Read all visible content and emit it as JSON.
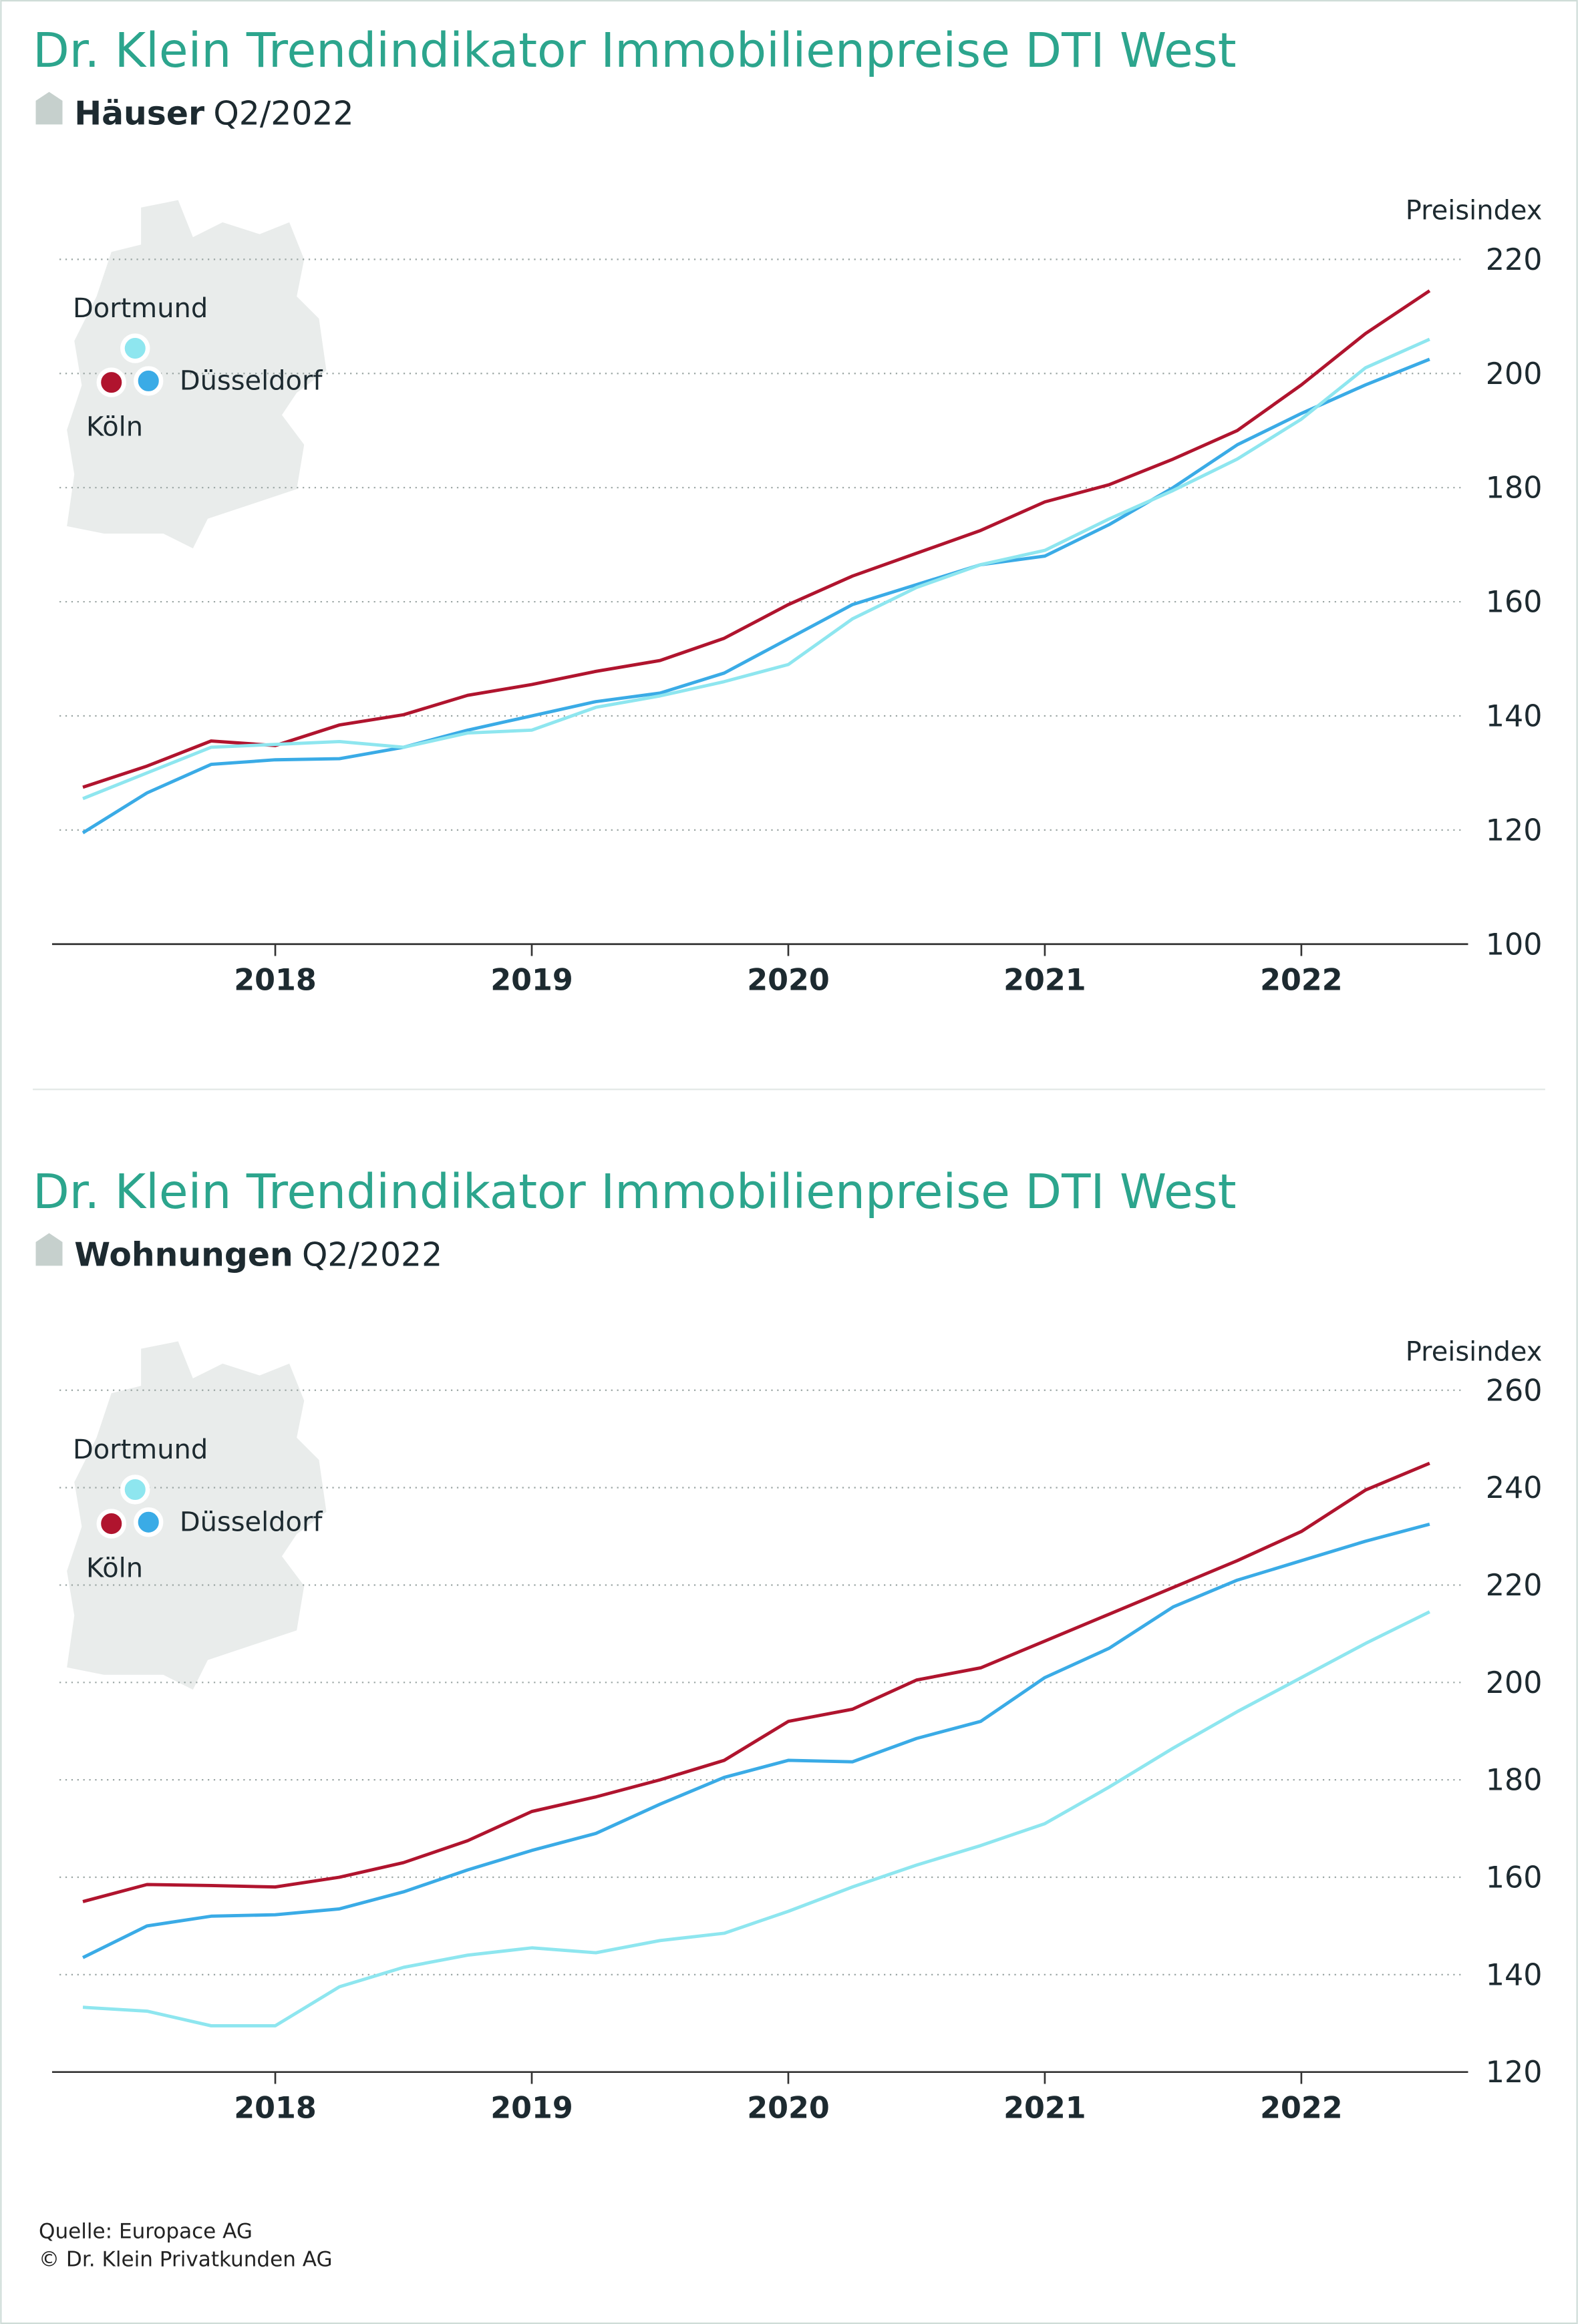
{
  "chart_data": [
    {
      "type": "line",
      "title": "Dr. Klein Trendindikator Immobilienpreise DTI West",
      "subtitle_bold": "Häuser",
      "subtitle": "Q2/2022",
      "y_axis_label": "Preisindex",
      "x": [
        2017.25,
        2017.5,
        2017.75,
        2018,
        2018.25,
        2018.5,
        2018.75,
        2019,
        2019.25,
        2019.5,
        2019.75,
        2020,
        2020.25,
        2020.5,
        2020.75,
        2021,
        2021.25,
        2021.5,
        2021.75,
        2022,
        2022.25,
        2022.5
      ],
      "xlim": [
        2017.13,
        2022.65
      ],
      "xticks": [
        2018,
        2019,
        2020,
        2021,
        2022
      ],
      "ylim": [
        100,
        220
      ],
      "yticks": [
        100,
        120,
        140,
        160,
        180,
        200,
        220
      ],
      "grid": true,
      "series": [
        {
          "name": "Köln",
          "color": "#b0142e",
          "values": [
            127.5,
            131.2,
            135.6,
            134.8,
            138.4,
            140.2,
            143.6,
            145.5,
            147.8,
            149.7,
            153.6,
            159.5,
            164.5,
            168.5,
            172.5,
            177.5,
            180.5,
            185,
            190,
            198,
            207,
            214.5
          ]
        },
        {
          "name": "Düsseldorf",
          "color": "#3aabe6",
          "values": [
            119.5,
            126.5,
            131.5,
            132.3,
            132.5,
            134.5,
            137.5,
            140,
            142.5,
            144,
            147.5,
            153.5,
            159.5,
            163,
            166.5,
            168,
            173.5,
            180,
            187.5,
            193,
            198,
            202.5
          ]
        },
        {
          "name": "Dortmund",
          "color": "#8ee6ef",
          "values": [
            125.5,
            130,
            134.5,
            135,
            135.5,
            134.5,
            137,
            137.5,
            141.5,
            143.5,
            146,
            149,
            157,
            162.5,
            166.5,
            169,
            174.5,
            179.5,
            185,
            192,
            201,
            206
          ]
        }
      ]
    },
    {
      "type": "line",
      "title": "Dr. Klein Trendindikator Immobilienpreise DTI West",
      "subtitle_bold": "Wohnungen",
      "subtitle": "Q2/2022",
      "y_axis_label": "Preisindex",
      "x": [
        2017.25,
        2017.5,
        2017.75,
        2018,
        2018.25,
        2018.5,
        2018.75,
        2019,
        2019.25,
        2019.5,
        2019.75,
        2020,
        2020.25,
        2020.5,
        2020.75,
        2021,
        2021.25,
        2021.5,
        2021.75,
        2022,
        2022.25,
        2022.5
      ],
      "xlim": [
        2017.13,
        2022.65
      ],
      "xticks": [
        2018,
        2019,
        2020,
        2021,
        2022
      ],
      "ylim": [
        120,
        260
      ],
      "yticks": [
        120,
        140,
        160,
        180,
        200,
        220,
        240,
        260
      ],
      "grid": true,
      "series": [
        {
          "name": "Köln",
          "color": "#b0142e",
          "values": [
            155,
            158.5,
            158.3,
            158,
            160,
            163,
            167.5,
            173.5,
            176.5,
            180,
            184,
            192,
            194.5,
            200.5,
            203,
            208.5,
            214,
            219.5,
            225,
            231,
            239.5,
            245
          ]
        },
        {
          "name": "Düsseldorf",
          "color": "#3aabe6",
          "values": [
            143.5,
            150,
            152,
            152.3,
            153.5,
            157,
            161.5,
            165.5,
            169,
            175,
            180.5,
            184,
            183.7,
            188.5,
            192,
            201,
            207,
            215.5,
            221,
            225,
            229,
            232.5
          ]
        },
        {
          "name": "Dortmund",
          "color": "#8ee6ef",
          "values": [
            133.3,
            132.5,
            129.5,
            129.5,
            137.5,
            141.5,
            144,
            145.5,
            144.5,
            147,
            148.5,
            153,
            158,
            162.5,
            166.5,
            171,
            178.5,
            186.5,
            194,
            201,
            208,
            214.5
          ]
        }
      ]
    }
  ],
  "source": "Quelle: Europace AG",
  "copyright": "© Dr. Klein Privatkunden AG"
}
